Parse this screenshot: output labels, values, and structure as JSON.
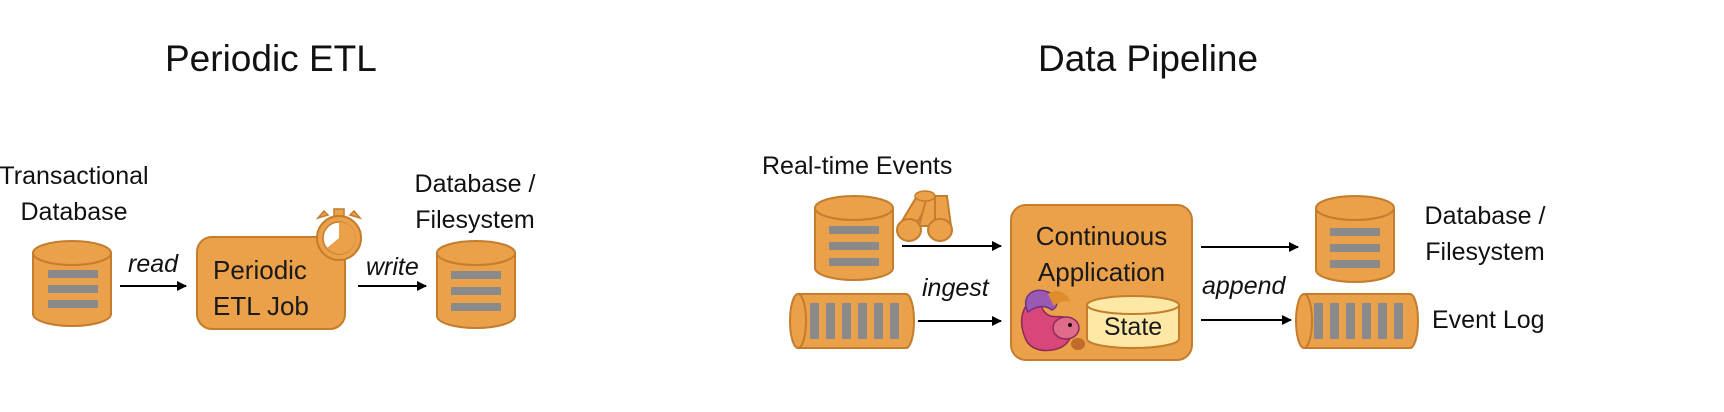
{
  "colors": {
    "orange_fill": "#eba04a",
    "orange_stroke": "#c47d2c",
    "bar_gray": "#8a8a8a",
    "state_fill": "#fde8a6",
    "arrow": "#000000"
  },
  "left": {
    "title": "Periodic ETL",
    "source_label_line1": "Transactional",
    "source_label_line2": "Database",
    "read_label": "read",
    "job_line1": "Periodic",
    "job_line2": "ETL Job",
    "write_label": "write",
    "target_label_line1": "Database /",
    "target_label_line2": "Filesystem",
    "timer_icon": "stopwatch-icon"
  },
  "right": {
    "title": "Data Pipeline",
    "events_label": "Real-time Events",
    "app_line1": "Continuous",
    "app_line2": "Application",
    "state_label": "State",
    "ingest_label": "ingest",
    "append_label": "append",
    "target_label_line1": "Database /",
    "target_label_line2": "Filesystem",
    "eventlog_label": "Event Log",
    "mascot_icon": "squirrel-icon",
    "logs_icon": "logs-icon"
  }
}
